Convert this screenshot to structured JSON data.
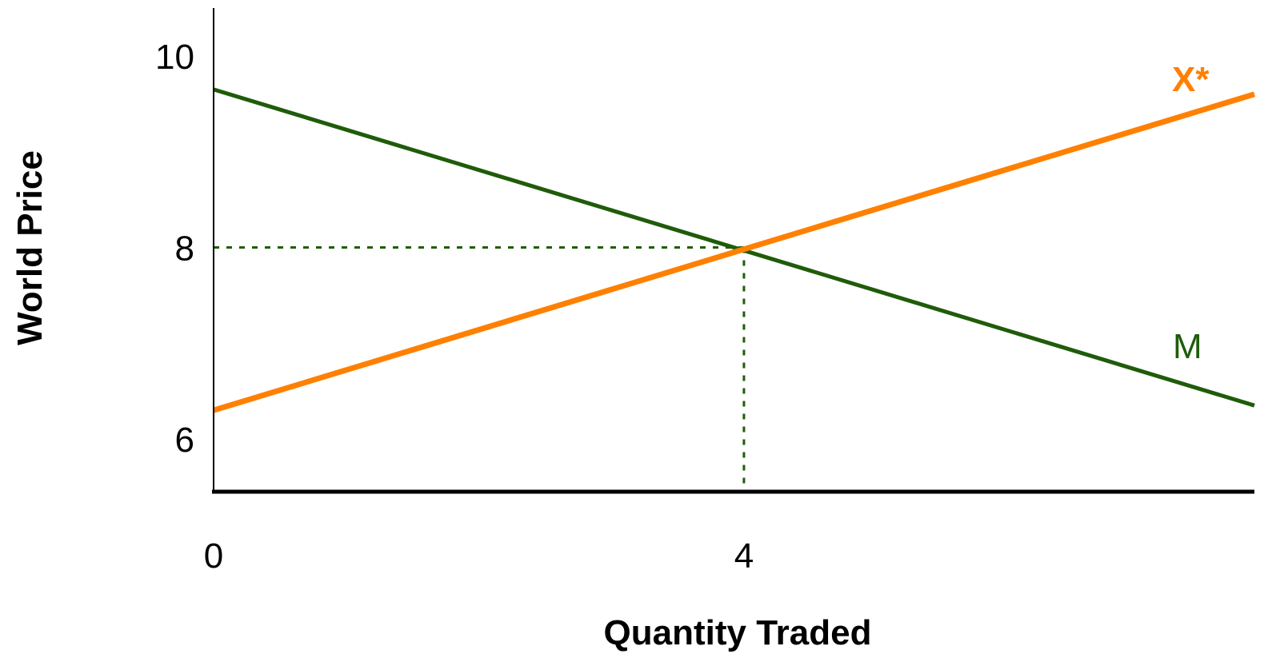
{
  "chart_data": {
    "type": "line",
    "title": "",
    "xlabel": "Quantity Traded",
    "ylabel": "World Price",
    "x_ticks": [
      0,
      4
    ],
    "y_ticks": [
      6,
      8,
      10
    ],
    "xlim": [
      0,
      7.85
    ],
    "ylim": [
      5.45,
      10.5
    ],
    "grid": false,
    "series": [
      {
        "name": "M",
        "color": "#1f5c0a",
        "points": [
          [
            0,
            9.65
          ],
          [
            7.85,
            6.35
          ]
        ]
      },
      {
        "name": "X*",
        "color": "#ff8000",
        "points": [
          [
            0,
            6.3
          ],
          [
            7.85,
            9.6
          ]
        ]
      }
    ],
    "guides": {
      "x": 4,
      "y": 8,
      "color": "#1f5c0a"
    },
    "equilibrium": {
      "quantity": 4,
      "price": 8
    }
  }
}
